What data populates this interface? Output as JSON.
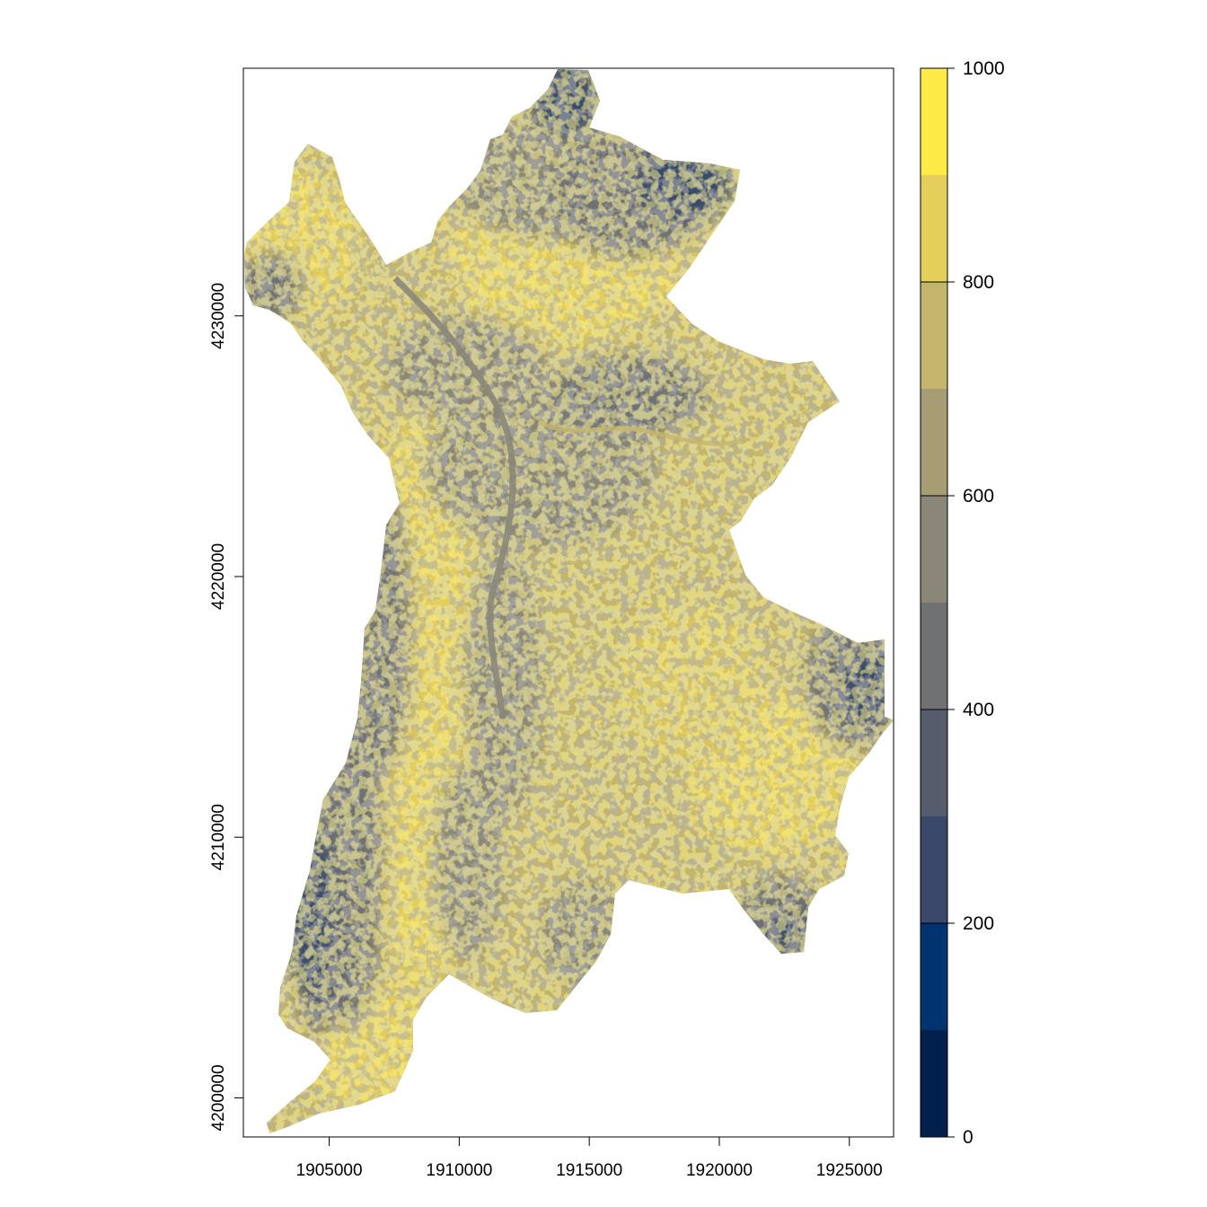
{
  "map": {
    "type": "raster",
    "x_ticks": [
      "1905000",
      "1910000",
      "1915000",
      "1920000",
      "1925000"
    ],
    "y_ticks": [
      "4200000",
      "4210000",
      "4220000",
      "4230000"
    ],
    "x_tick_values": [
      1905000,
      1910000,
      1915000,
      1920000,
      1925000
    ],
    "y_tick_values": [
      4200000,
      4210000,
      4220000,
      4230000
    ],
    "xlim": [
      1901700,
      1926700
    ],
    "ylim": [
      4198500,
      4239500
    ]
  },
  "legend": {
    "labels": [
      "0",
      "200",
      "400",
      "600",
      "800",
      "1000"
    ],
    "values": [
      0,
      200,
      400,
      600,
      800,
      1000
    ],
    "range": [
      0,
      1000
    ],
    "bins": [
      {
        "from": 0,
        "to": 100,
        "color": "#00204d"
      },
      {
        "from": 100,
        "to": 200,
        "color": "#00336f"
      },
      {
        "from": 200,
        "to": 300,
        "color": "#39486b"
      },
      {
        "from": 300,
        "to": 400,
        "color": "#575c6d"
      },
      {
        "from": 400,
        "to": 500,
        "color": "#707173"
      },
      {
        "from": 500,
        "to": 600,
        "color": "#8a8779"
      },
      {
        "from": 600,
        "to": 700,
        "color": "#a69d75"
      },
      {
        "from": 700,
        "to": 800,
        "color": "#c4b56c"
      },
      {
        "from": 800,
        "to": 900,
        "color": "#e4cf5b"
      },
      {
        "from": 900,
        "to": 1000,
        "color": "#ffea46"
      }
    ]
  }
}
